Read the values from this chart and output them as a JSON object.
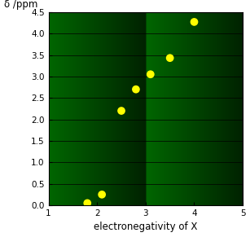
{
  "x_data": [
    1.8,
    2.1,
    2.5,
    2.8,
    3.1,
    3.5,
    4.0
  ],
  "y_data": [
    0.05,
    0.25,
    2.2,
    2.7,
    3.05,
    3.43,
    4.27
  ],
  "xlabel": "electronegativity of X",
  "ylabel": "δ /ppm",
  "xlim": [
    1,
    5
  ],
  "ylim": [
    0,
    4.5
  ],
  "xticks": [
    1,
    2,
    3,
    4,
    5
  ],
  "yticks": [
    0,
    0.5,
    1.0,
    1.5,
    2.0,
    2.5,
    3.0,
    3.5,
    4.0,
    4.5
  ],
  "marker_color": "#ffff00",
  "marker_size": 7,
  "bg_color_top": "#002200",
  "bg_color_bottom": "#006600",
  "grid_color": "#000000",
  "tick_label_color": "#000000",
  "axis_label_color": "#000000",
  "fig_bg_color": "#ffffff"
}
